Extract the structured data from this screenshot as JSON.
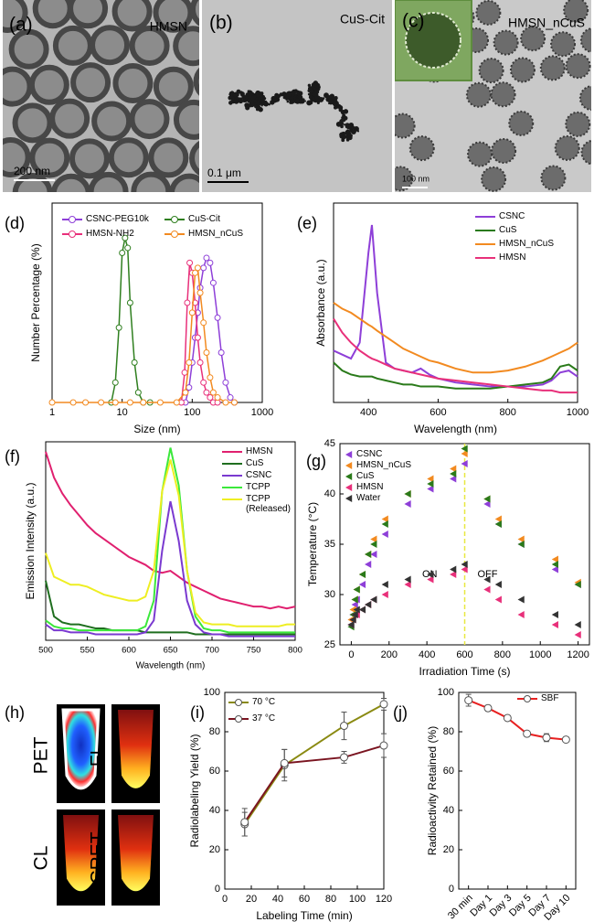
{
  "images": [
    {
      "label": "(a)",
      "title": "HMSN",
      "scale_bar": "200 nm"
    },
    {
      "label": "(b)",
      "title": "CuS-Cit",
      "scale_bar": "0.1 μm"
    },
    {
      "label": "(c)",
      "title": "HMSN_nCuS",
      "scale_bar": "100 nm"
    },
    {
      "label": "(h)",
      "tiles": [
        "PET",
        "FL",
        "CL",
        "CRET"
      ]
    }
  ],
  "chart_data": [
    {
      "type": "line",
      "label": "(d)",
      "xlabel": "Size (nm)",
      "ylabel": "Number Percentage (%)",
      "xscale": "log",
      "xlim": [
        1,
        1000
      ],
      "xticks": [
        1,
        10,
        100,
        1000
      ],
      "ylim": [
        0,
        40
      ],
      "marker": "circle",
      "legend": "upper center",
      "legend_columns": 2,
      "series": [
        {
          "name": "CSNC-PEG10k",
          "color": "#8e3fd8",
          "x": [
            80,
            90,
            100,
            110,
            120,
            130,
            145,
            160,
            180,
            200,
            230,
            260,
            300,
            350,
            400
          ],
          "values": [
            0,
            3,
            8,
            13,
            18,
            23,
            27,
            29,
            28,
            24,
            17,
            10,
            4,
            1,
            0
          ]
        },
        {
          "name": "CuS-Cit",
          "color": "#2f7f1f",
          "x": [
            7,
            8,
            9,
            10,
            11,
            12,
            13,
            15,
            17,
            20,
            25
          ],
          "values": [
            0,
            4,
            15,
            30,
            33,
            31,
            20,
            8,
            2,
            0,
            0
          ]
        },
        {
          "name": "HMSN-NH2",
          "color": "#e8307a",
          "x": [
            70,
            78,
            85,
            92,
            100,
            110,
            120,
            130,
            145,
            160,
            180,
            200,
            230
          ],
          "values": [
            0,
            6,
            20,
            28,
            26,
            20,
            13,
            8,
            4,
            2,
            1,
            0,
            0
          ]
        },
        {
          "name": "HMSN_nCuS",
          "color": "#f28a20",
          "x": [
            1,
            2,
            3,
            5,
            8,
            13,
            20,
            35,
            60,
            80,
            90,
            100,
            110,
            120,
            130,
            145,
            160,
            180,
            200,
            230,
            300,
            400
          ],
          "values": [
            0,
            0,
            0,
            0,
            0,
            0,
            0,
            0,
            0,
            2,
            8,
            18,
            26,
            27,
            22,
            16,
            10,
            5,
            2,
            1,
            0,
            0
          ]
        }
      ]
    },
    {
      "type": "line",
      "label": "(e)",
      "xlabel": "Wavelength (nm)",
      "ylabel": "Absorbance (a.u.)",
      "xlim": [
        300,
        1000
      ],
      "xticks": [
        400,
        600,
        800,
        1000
      ],
      "ylim": [
        0,
        100
      ],
      "legend": "upper right",
      "x": [
        300,
        325,
        350,
        375,
        400,
        410,
        425,
        450,
        475,
        500,
        525,
        550,
        575,
        600,
        650,
        700,
        750,
        800,
        850,
        900,
        925,
        950,
        975,
        1000
      ],
      "series": [
        {
          "name": "CSNC",
          "color": "#8e3fd8",
          "values": [
            26,
            24,
            22,
            30,
            75,
            89,
            55,
            20,
            17,
            16,
            15,
            17,
            14,
            12,
            10,
            9,
            8,
            8,
            8,
            9,
            11,
            15,
            16,
            13
          ]
        },
        {
          "name": "CuS",
          "color": "#2a7a1a",
          "values": [
            20,
            16,
            14,
            13,
            13,
            13,
            12,
            11,
            10,
            9,
            9,
            8,
            8,
            8,
            7,
            7,
            7,
            8,
            9,
            10,
            12,
            18,
            19,
            16
          ]
        },
        {
          "name": "HMSN_nCuS",
          "color": "#f28a20",
          "values": [
            50,
            47,
            45,
            42,
            39,
            38,
            36,
            33,
            30,
            27,
            25,
            23,
            21,
            20,
            17,
            15,
            15,
            16,
            18,
            21,
            23,
            25,
            27,
            30
          ]
        },
        {
          "name": "HMSN",
          "color": "#e8307a",
          "values": [
            42,
            35,
            30,
            26,
            23,
            22,
            21,
            19,
            17,
            16,
            15,
            14,
            13,
            12,
            11,
            10,
            9,
            8,
            7,
            6,
            6,
            5,
            5,
            5
          ]
        }
      ]
    },
    {
      "type": "line",
      "label": "(f)",
      "xlabel": "Wavelength (nm)",
      "ylabel": "Emission Intensity (a.u.)",
      "xlim": [
        500,
        800
      ],
      "xticks": [
        500,
        550,
        600,
        650,
        700,
        750,
        800
      ],
      "ylim": [
        0,
        100
      ],
      "legend": "upper right",
      "x": [
        500,
        510,
        520,
        530,
        540,
        550,
        560,
        570,
        580,
        590,
        600,
        610,
        620,
        630,
        640,
        650,
        660,
        670,
        680,
        690,
        700,
        710,
        720,
        730,
        740,
        750,
        760,
        770,
        780,
        790,
        800
      ],
      "series": [
        {
          "name": "HMSN",
          "color": "#e0206f",
          "values": [
            95,
            82,
            74,
            68,
            63,
            58,
            54,
            51,
            48,
            45,
            42,
            40,
            38,
            35,
            34,
            35,
            32,
            29,
            27,
            25,
            23,
            21,
            20,
            19,
            18,
            17,
            17,
            16,
            17,
            16,
            17
          ]
        },
        {
          "name": "CuS",
          "color": "#1f6e1f",
          "values": [
            30,
            12,
            9,
            8,
            8,
            7,
            6,
            6,
            5,
            5,
            5,
            5,
            4,
            4,
            4,
            4,
            4,
            4,
            3,
            3,
            3,
            3,
            3,
            3,
            3,
            3,
            3,
            3,
            3,
            3,
            3
          ]
        },
        {
          "name": "CSNC",
          "color": "#7a3ad0",
          "values": [
            8,
            5,
            5,
            4,
            4,
            4,
            3,
            3,
            3,
            3,
            3,
            3,
            4,
            10,
            45,
            70,
            50,
            20,
            8,
            4,
            3,
            3,
            2,
            2,
            2,
            2,
            2,
            2,
            2,
            2,
            2
          ]
        },
        {
          "name": "TCPP",
          "color": "#3be83b",
          "values": [
            10,
            7,
            6,
            6,
            5,
            5,
            5,
            5,
            5,
            5,
            5,
            5,
            7,
            20,
            75,
            97,
            78,
            35,
            12,
            6,
            5,
            5,
            4,
            4,
            4,
            4,
            4,
            4,
            4,
            4,
            4
          ]
        },
        {
          "name": "TCPP (Released)",
          "color": "#eeee22",
          "values": [
            44,
            32,
            30,
            28,
            28,
            27,
            25,
            23,
            22,
            21,
            20,
            20,
            22,
            35,
            75,
            91,
            73,
            35,
            14,
            9,
            8,
            8,
            8,
            7,
            7,
            7,
            7,
            7,
            7,
            8,
            8
          ]
        }
      ]
    },
    {
      "type": "scatter",
      "label": "(g)",
      "xlabel": "Irradiation Time (s)",
      "ylabel": "Temperature (°C)",
      "xlim": [
        -60,
        1260
      ],
      "xticks": [
        0,
        200,
        400,
        600,
        800,
        1000,
        1200
      ],
      "ylim": [
        25,
        45
      ],
      "yticks": [
        25,
        30,
        35,
        40,
        45
      ],
      "marker": "triangle",
      "legend": "upper left",
      "vline": 600,
      "annotations": [
        "ON",
        "OFF"
      ],
      "x": [
        0,
        10,
        20,
        30,
        60,
        90,
        120,
        180,
        300,
        420,
        540,
        600,
        720,
        780,
        900,
        1080,
        1200
      ],
      "series": [
        {
          "name": "CSNC",
          "color": "#8e3fd8",
          "values": [
            27,
            28,
            29,
            29.5,
            31,
            33,
            34,
            36,
            39,
            40.5,
            41.5,
            43,
            39,
            37,
            35,
            32.5,
            31
          ]
        },
        {
          "name": "HMSN_nCuS",
          "color": "#f28a20",
          "values": [
            27.5,
            28.5,
            29.5,
            30.5,
            32,
            34,
            35.5,
            37.5,
            40,
            41.5,
            42.5,
            44,
            39.5,
            37.5,
            35.5,
            33.5,
            31.2
          ]
        },
        {
          "name": "CuS",
          "color": "#2a7a1a",
          "values": [
            26.8,
            28,
            29.5,
            30.5,
            32,
            34,
            35,
            37,
            40,
            41,
            42,
            44.5,
            39.5,
            37,
            35,
            33,
            31
          ]
        },
        {
          "name": "HMSN",
          "color": "#e8307a",
          "values": [
            27,
            27.5,
            28,
            28,
            28.5,
            29,
            29.5,
            30,
            31,
            31.5,
            32,
            32.5,
            30.5,
            29.5,
            28,
            27,
            26
          ]
        },
        {
          "name": "Water",
          "color": "#333333",
          "values": [
            27,
            27.5,
            28,
            28.5,
            28.5,
            29,
            29.5,
            31,
            31.5,
            32,
            32.5,
            33,
            31.5,
            31,
            29.5,
            28,
            27
          ]
        }
      ]
    },
    {
      "type": "line",
      "label": "(i)",
      "xlabel": "Labeling Time (min)",
      "ylabel": "Radiolabeling Yield (%)",
      "xlim": [
        0,
        120
      ],
      "xticks": [
        0,
        20,
        40,
        60,
        80,
        100,
        120
      ],
      "ylim": [
        0,
        100
      ],
      "yticks": [
        0,
        20,
        40,
        60,
        80,
        100
      ],
      "marker": "circle",
      "legend": "upper left",
      "x": [
        15,
        45,
        90,
        120
      ],
      "series": [
        {
          "name": "70 °C",
          "color": "#8a8a12",
          "values": [
            33,
            63,
            83,
            94
          ],
          "errors": [
            6,
            8,
            7,
            3
          ]
        },
        {
          "name": "37 °C",
          "color": "#7a1420",
          "values": [
            34,
            64,
            67,
            73
          ],
          "errors": [
            7,
            7,
            3,
            6
          ]
        }
      ]
    },
    {
      "type": "line",
      "label": "(j)",
      "ylabel": "Radioactivity Retained (%)",
      "categories": [
        "30 min",
        "Day 1",
        "Day 3",
        "Day 5",
        "Day 7",
        "Day 10"
      ],
      "ylim": [
        0,
        100
      ],
      "yticks": [
        0,
        20,
        40,
        60,
        80,
        100
      ],
      "marker": "circle",
      "legend": "upper right",
      "series": [
        {
          "name": "SBF",
          "color": "#e82020",
          "values": [
            96,
            92,
            87,
            79,
            77,
            76
          ],
          "errors": [
            3,
            1.5,
            1,
            1,
            2,
            1
          ]
        }
      ]
    }
  ]
}
